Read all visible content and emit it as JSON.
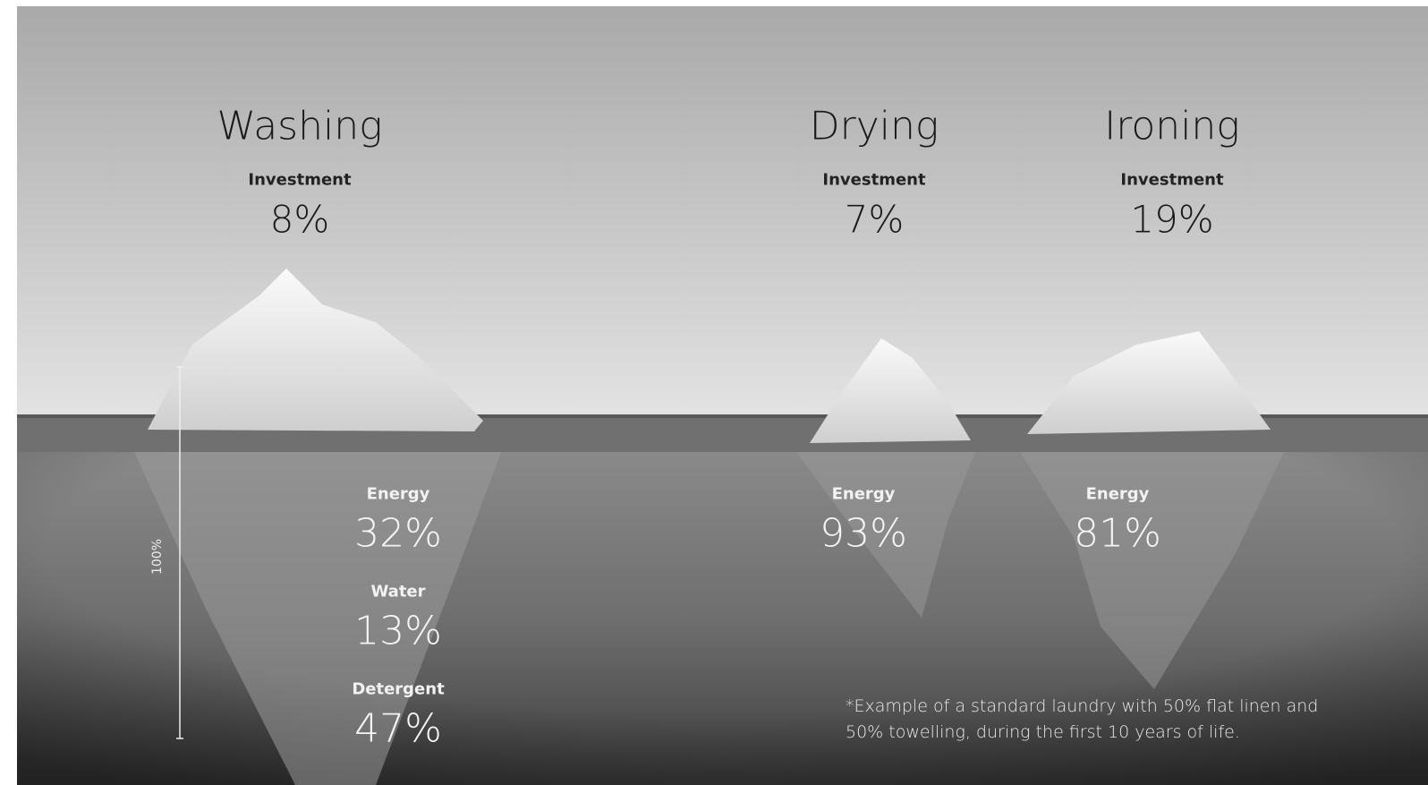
{
  "columns": [
    {
      "title": "Washing",
      "above": [
        {
          "label": "Investment",
          "value": "8%"
        }
      ],
      "below": [
        {
          "label": "Energy",
          "value": "32%"
        },
        {
          "label": "Water",
          "value": "13%"
        },
        {
          "label": "Detergent",
          "value": "47%"
        }
      ]
    },
    {
      "title": "Drying",
      "above": [
        {
          "label": "Investment",
          "value": "7%"
        }
      ],
      "below": [
        {
          "label": "Energy",
          "value": "93%"
        }
      ]
    },
    {
      "title": "Ironing",
      "above": [
        {
          "label": "Investment",
          "value": "19%"
        }
      ],
      "below": [
        {
          "label": "Energy",
          "value": "81%"
        }
      ]
    }
  ],
  "scale_label": "100%",
  "footnote": [
    "*Example of a standard laundry with 50% flat linen and",
    "50% towelling, during the first 10 years of life."
  ]
}
